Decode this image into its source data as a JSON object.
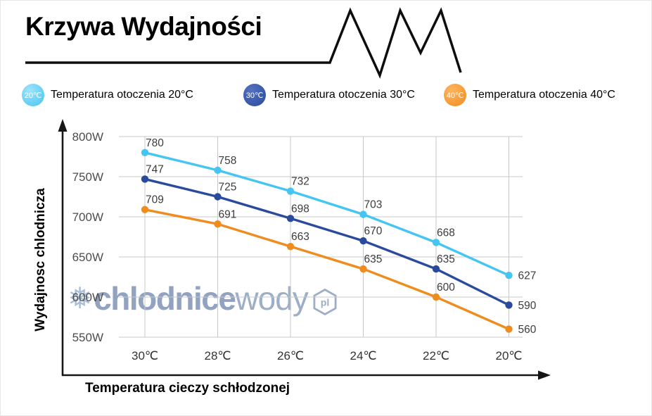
{
  "page": {
    "title": "Krzywa Wydajności"
  },
  "legend": [
    {
      "badge": "20℃",
      "label": "Temperatura otoczenia 20°C",
      "color": "#45c5f2",
      "highlight": "#9fe3fb"
    },
    {
      "badge": "30℃",
      "label": "Temperatura otoczenia 30°C",
      "color": "#2a4a9d",
      "highlight": "#5571c0"
    },
    {
      "badge": "40℃",
      "label": "Temperatura otoczenia 40°C",
      "color": "#f08c1e",
      "highlight": "#ffb45e"
    }
  ],
  "watermark": {
    "snowflake": "❅",
    "part1": "chlodnice",
    "part2": "wody",
    "suffix": "pl"
  },
  "chart_data": {
    "type": "line",
    "title": "Krzywa Wydajności",
    "categories": [
      "30℃",
      "28℃",
      "26℃",
      "24℃",
      "22℃",
      "20℃"
    ],
    "series": [
      {
        "name": "Temperatura otoczenia 20°C",
        "color": "#45c5f2",
        "values": [
          780,
          758,
          732,
          703,
          668,
          627
        ]
      },
      {
        "name": "Temperatura otoczenia 30°C",
        "color": "#2a4a9d",
        "values": [
          747,
          725,
          698,
          670,
          635,
          590
        ]
      },
      {
        "name": "Temperatura otoczenia 40°C",
        "color": "#f08c1e",
        "values": [
          709,
          691,
          663,
          635,
          600,
          560
        ]
      }
    ],
    "xlabel": "Temperatura cieczy schłodzonej",
    "ylabel": "Wydajnosc chlodnicza",
    "yticks": [
      "800W",
      "750W",
      "700W",
      "650W",
      "600W",
      "550W"
    ],
    "ytick_values": [
      800,
      750,
      700,
      650,
      600,
      550
    ],
    "ylim": [
      550,
      800
    ],
    "grid": true,
    "legend_position": "top"
  }
}
